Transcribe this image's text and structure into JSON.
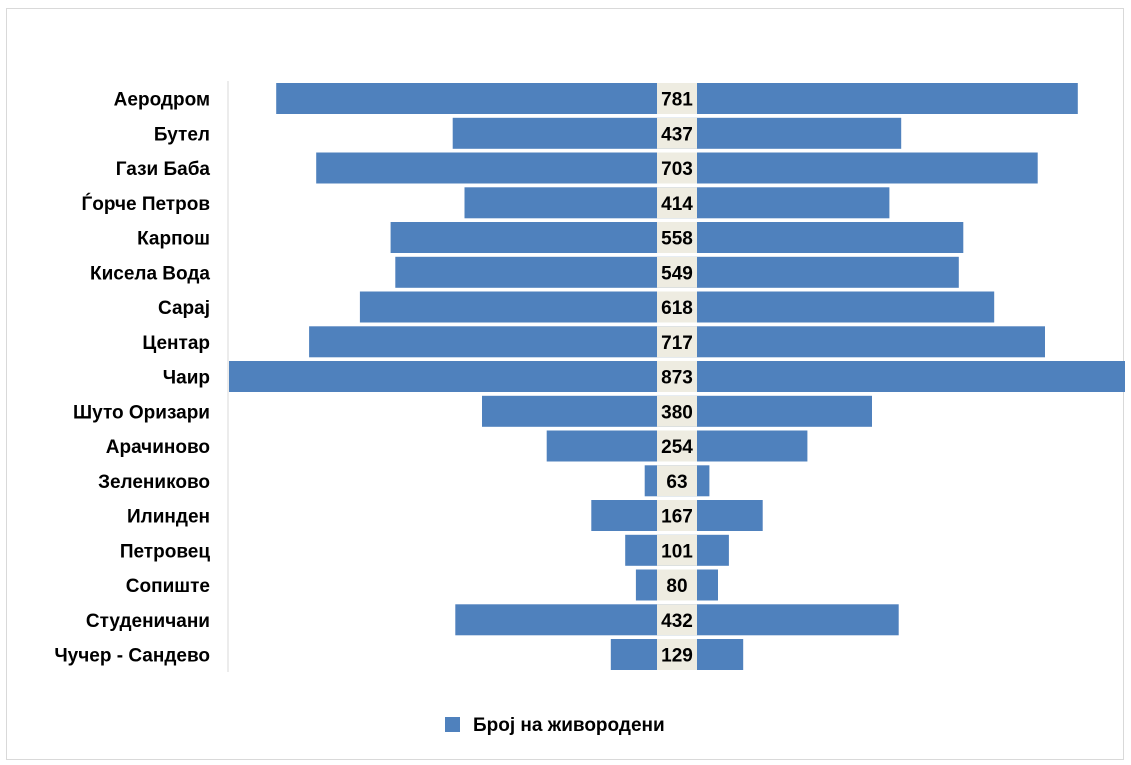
{
  "chart_data": {
    "type": "bar",
    "orientation": "horizontal",
    "style": "centered-funnel",
    "categories": [
      "Аеродром",
      "Бутел",
      "Гази Баба",
      "Ѓорче Петров",
      "Карпош",
      "Кисела Вода",
      "Сарај",
      "Центар",
      "Чаир",
      "Шуто Оризари",
      "Арачиново",
      "Зелениково",
      "Илинден",
      "Петровец",
      "Сопиште",
      "Студеничани",
      "Чучер - Сандево"
    ],
    "series": [
      {
        "name": "Број на живородени",
        "values": [
          781,
          437,
          703,
          414,
          558,
          549,
          618,
          717,
          873,
          380,
          254,
          63,
          167,
          101,
          80,
          432,
          129
        ]
      }
    ],
    "title": "",
    "xlabel": "",
    "ylabel": "",
    "xlim": [
      0,
      873
    ],
    "grid": false,
    "legend": "bottom-center",
    "bar_color": "#4f81bd",
    "label_box_color": "#eeece1"
  }
}
